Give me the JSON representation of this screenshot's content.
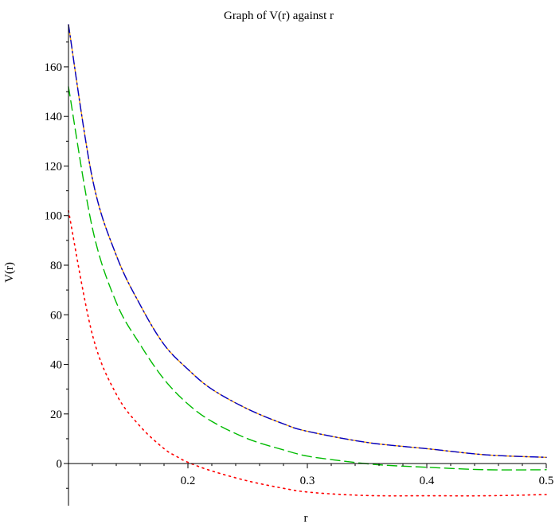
{
  "chart_data": {
    "type": "line",
    "title": "Graph of V(r) against r",
    "xlabel": "r",
    "ylabel": "V(r)",
    "xlim": [
      0.1,
      0.5
    ],
    "ylim": [
      -17,
      177
    ],
    "x_ticks": [
      {
        "value": 0.2,
        "label": "0.2"
      },
      {
        "value": 0.3,
        "label": "0.3"
      },
      {
        "value": 0.4,
        "label": "0.4"
      },
      {
        "value": 0.5,
        "label": "0.5"
      }
    ],
    "y_ticks": [
      {
        "value": 0,
        "label": "0"
      },
      {
        "value": 20,
        "label": "20"
      },
      {
        "value": 40,
        "label": "40"
      },
      {
        "value": 60,
        "label": "60"
      },
      {
        "value": 80,
        "label": "80"
      },
      {
        "value": 100,
        "label": "100"
      },
      {
        "value": 120,
        "label": "120"
      },
      {
        "value": 140,
        "label": "140"
      },
      {
        "value": 160,
        "label": "160"
      }
    ],
    "grid": false,
    "legend": "none",
    "series": [
      {
        "color": "#ffa500",
        "dash": "solid",
        "x": [
          0.1,
          0.12,
          0.14,
          0.16,
          0.18,
          0.2,
          0.22,
          0.25,
          0.28,
          0.3,
          0.35,
          0.4,
          0.45,
          0.5
        ],
        "values": [
          177,
          115,
          84,
          64,
          48,
          38,
          30,
          22,
          16,
          13,
          8.5,
          6,
          3.5,
          2.5
        ]
      },
      {
        "color": "#0000cc",
        "dash": "dashdot",
        "x": [
          0.1,
          0.12,
          0.14,
          0.16,
          0.18,
          0.2,
          0.22,
          0.25,
          0.28,
          0.3,
          0.35,
          0.4,
          0.45,
          0.5
        ],
        "values": [
          177,
          115,
          84,
          64,
          48,
          38,
          30,
          22,
          16,
          13,
          8.5,
          6,
          3.5,
          2.5
        ]
      },
      {
        "color": "#00bb00",
        "dash": "dashed",
        "x": [
          0.1,
          0.12,
          0.14,
          0.16,
          0.18,
          0.2,
          0.22,
          0.25,
          0.28,
          0.3,
          0.33,
          0.36,
          0.4,
          0.45,
          0.5
        ],
        "values": [
          152,
          95,
          65,
          48,
          34,
          24,
          17,
          10,
          5.5,
          3,
          1,
          -0.5,
          -1.5,
          -2.5,
          -2.5
        ]
      },
      {
        "color": "#ff0000",
        "dash": "dotted",
        "x": [
          0.1,
          0.12,
          0.14,
          0.16,
          0.18,
          0.19,
          0.2,
          0.22,
          0.25,
          0.28,
          0.3,
          0.33,
          0.36,
          0.4,
          0.45,
          0.5
        ],
        "values": [
          102,
          52,
          28,
          15,
          6,
          3,
          0.5,
          -3,
          -7,
          -10,
          -11.5,
          -12.5,
          -13,
          -13,
          -13,
          -12.5
        ]
      }
    ]
  }
}
